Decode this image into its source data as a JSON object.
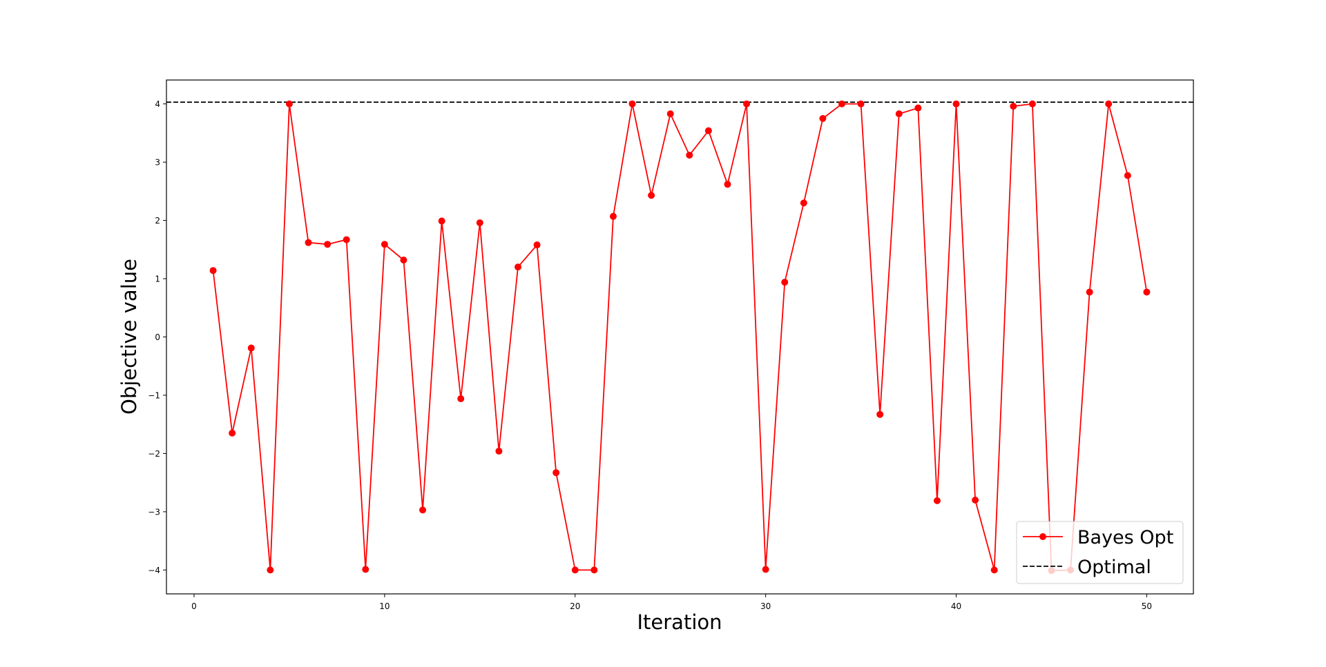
{
  "chart_data": {
    "type": "line",
    "title": "",
    "xlabel": "Iteration",
    "ylabel": "Objective value",
    "xlim": [
      -1.45,
      52.45
    ],
    "ylim": [
      -4.41,
      4.41
    ],
    "xticks": [
      0,
      10,
      20,
      30,
      40,
      50
    ],
    "yticks": [
      -4,
      -3,
      -2,
      -1,
      0,
      1,
      2,
      3,
      4
    ],
    "ytick_labels": [
      "−4",
      "−3",
      "−2",
      "−1",
      "0",
      "1",
      "2",
      "3",
      "4"
    ],
    "grid": false,
    "legend_position": "lower-right",
    "series": [
      {
        "name": "Bayes Opt",
        "color": "#ff0000",
        "marker": "circle",
        "x": [
          1,
          2,
          3,
          4,
          5,
          6,
          7,
          8,
          9,
          10,
          11,
          12,
          13,
          14,
          15,
          16,
          17,
          18,
          19,
          20,
          21,
          22,
          23,
          24,
          25,
          26,
          27,
          28,
          29,
          30,
          31,
          32,
          33,
          34,
          35,
          36,
          37,
          38,
          39,
          40,
          41,
          42,
          43,
          44,
          45,
          46,
          47,
          48,
          49,
          50
        ],
        "y": [
          1.14,
          -1.65,
          -0.19,
          -4.0,
          4.0,
          1.62,
          1.59,
          1.67,
          -3.99,
          1.59,
          1.32,
          -2.97,
          1.99,
          -1.06,
          1.96,
          -1.96,
          1.2,
          1.58,
          -2.33,
          -4.0,
          -4.0,
          2.07,
          4.0,
          2.43,
          3.83,
          3.12,
          3.54,
          2.62,
          4.0,
          -3.99,
          0.94,
          2.3,
          3.75,
          4.0,
          4.0,
          -1.33,
          3.83,
          3.93,
          -2.81,
          4.0,
          -2.8,
          -4.0,
          3.96,
          4.0,
          -4.01,
          -4.0,
          0.77,
          4.0,
          2.77,
          0.77
        ]
      },
      {
        "name": "Optimal",
        "color": "#000000",
        "style": "dashed",
        "y_constant": 4.03
      }
    ]
  }
}
